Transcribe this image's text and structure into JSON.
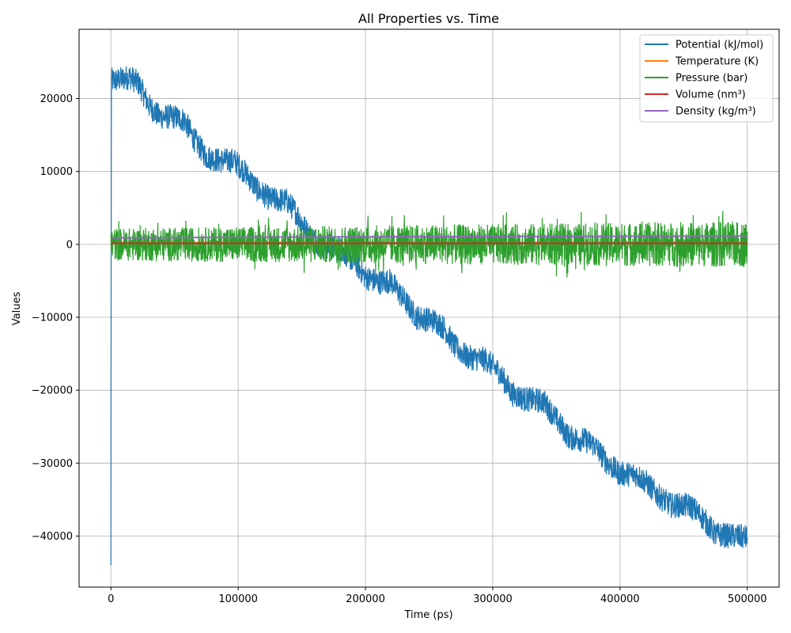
{
  "chart_data": {
    "type": "line",
    "title": "All Properties vs. Time",
    "xlabel": "Time (ps)",
    "ylabel": "Values",
    "xlim": [
      -25000,
      525000
    ],
    "ylim": [
      -47000,
      29500
    ],
    "xticks": [
      0,
      100000,
      200000,
      300000,
      400000,
      500000
    ],
    "xtick_labels": [
      "0",
      "100000",
      "200000",
      "300000",
      "400000",
      "500000"
    ],
    "yticks": [
      -40000,
      -30000,
      -20000,
      -10000,
      0,
      10000,
      20000
    ],
    "ytick_labels": [
      "−40000",
      "−30000",
      "−20000",
      "−10000",
      "0",
      "10000",
      "20000"
    ],
    "grid": true,
    "legend_position": "upper-right",
    "series": [
      {
        "name": "Potential (kJ/mol)",
        "color": "#1f77b4",
        "noise_amplitude": 1700,
        "points": [
          [
            0,
            -44000
          ],
          [
            300,
            22500
          ],
          [
            5000,
            22500
          ],
          [
            15000,
            23000
          ],
          [
            22000,
            22000
          ],
          [
            30000,
            19000
          ],
          [
            38000,
            17500
          ],
          [
            50000,
            17500
          ],
          [
            58000,
            17000
          ],
          [
            65000,
            14500
          ],
          [
            75000,
            12000
          ],
          [
            85000,
            11500
          ],
          [
            97000,
            11500
          ],
          [
            105000,
            10000
          ],
          [
            115000,
            7500
          ],
          [
            125000,
            6200
          ],
          [
            138000,
            6000
          ],
          [
            145000,
            4500
          ],
          [
            155000,
            1500
          ],
          [
            165000,
            -200
          ],
          [
            180000,
            -600
          ],
          [
            192000,
            -2500
          ],
          [
            200000,
            -4500
          ],
          [
            210000,
            -5200
          ],
          [
            220000,
            -5000
          ],
          [
            230000,
            -7500
          ],
          [
            240000,
            -10000
          ],
          [
            255000,
            -10500
          ],
          [
            262000,
            -11500
          ],
          [
            270000,
            -14000
          ],
          [
            280000,
            -15500
          ],
          [
            295000,
            -15800
          ],
          [
            305000,
            -17500
          ],
          [
            315000,
            -20500
          ],
          [
            325000,
            -21200
          ],
          [
            340000,
            -21500
          ],
          [
            350000,
            -24000
          ],
          [
            360000,
            -26500
          ],
          [
            372000,
            -26800
          ],
          [
            380000,
            -27500
          ],
          [
            390000,
            -30000
          ],
          [
            400000,
            -31500
          ],
          [
            412000,
            -31500
          ],
          [
            420000,
            -32500
          ],
          [
            430000,
            -34500
          ],
          [
            440000,
            -35800
          ],
          [
            455000,
            -35800
          ],
          [
            465000,
            -37500
          ],
          [
            475000,
            -39800
          ],
          [
            490000,
            -40000
          ],
          [
            500000,
            -40200
          ]
        ]
      },
      {
        "name": "Temperature (K)",
        "color": "#ff7f0e",
        "noise_amplitude": 5,
        "points": [
          [
            0,
            300
          ],
          [
            500000,
            300
          ]
        ]
      },
      {
        "name": "Pressure (bar)",
        "color": "#2ca02c",
        "noise_amplitude": 2600,
        "points": [
          [
            0,
            0
          ],
          [
            500000,
            0
          ]
        ]
      },
      {
        "name": "Volume (nm³)",
        "color": "#d62728",
        "noise_amplitude": 0,
        "points": [
          [
            0,
            150
          ],
          [
            500000,
            150
          ]
        ]
      },
      {
        "name": "Density (kg/m³)",
        "color": "#9467bd",
        "noise_amplitude": 0,
        "points": [
          [
            0,
            900
          ],
          [
            200000,
            1050
          ],
          [
            500000,
            1150
          ]
        ]
      }
    ]
  }
}
